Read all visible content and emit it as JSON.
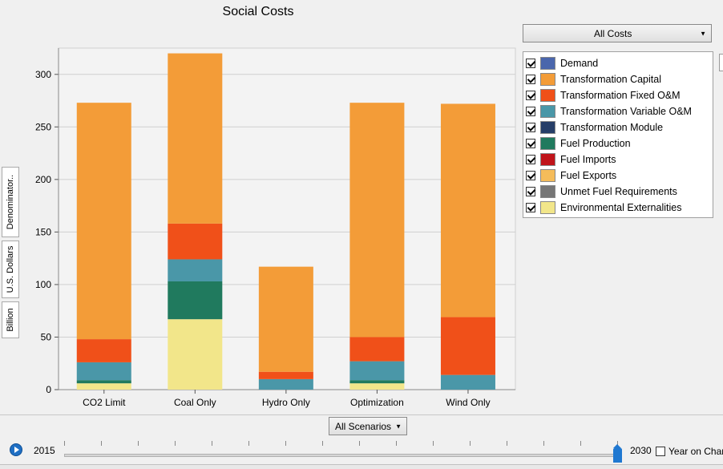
{
  "window": {
    "title": "Social Costs"
  },
  "side_tabs": [
    "Denominator..",
    "U.S. Dollars",
    "Billion"
  ],
  "cost_selector": {
    "value": "All Costs"
  },
  "scenario_selector": {
    "value": "All Scenarios"
  },
  "legend": [
    {
      "label": "Demand",
      "color": "#4a66ac",
      "checked": true
    },
    {
      "label": "Transformation Capital",
      "color": "#f39c38",
      "checked": true
    },
    {
      "label": "Transformation Fixed O&M",
      "color": "#f05019",
      "checked": true
    },
    {
      "label": "Transformation Variable O&M",
      "color": "#4a97a8",
      "checked": true
    },
    {
      "label": "Transformation Module",
      "color": "#263e68",
      "checked": true
    },
    {
      "label": "Fuel Production",
      "color": "#207a5e",
      "checked": true
    },
    {
      "label": "Fuel  Imports",
      "color": "#c0141a",
      "checked": true
    },
    {
      "label": "Fuel  Exports",
      "color": "#f5bc5a",
      "checked": true
    },
    {
      "label": "Unmet Fuel Requirements",
      "color": "#767676",
      "checked": true
    },
    {
      "label": "Environmental Externalities",
      "color": "#f2e68a",
      "checked": true
    }
  ],
  "timeline": {
    "start_year": "2015",
    "end_year": "2030",
    "current_year": 2030,
    "year_on_chart_label": "Year on Chart",
    "year_on_chart_checked": false
  },
  "chart_data": {
    "type": "bar",
    "stacked": true,
    "title": "Social Costs",
    "ylabel": "Billion U.S. Dollars",
    "ylim": [
      0,
      325
    ],
    "yticks": [
      0,
      50,
      100,
      150,
      200,
      250,
      300
    ],
    "categories": [
      "CO2 Limit",
      "Coal Only",
      "Hydro Only",
      "Optimization",
      "Wind Only"
    ],
    "series": [
      {
        "name": "Environmental Externalities",
        "color": "#f2e68a",
        "values": [
          6,
          67,
          0,
          6,
          0
        ]
      },
      {
        "name": "Fuel Production",
        "color": "#207a5e",
        "values": [
          3,
          36,
          0,
          3,
          0
        ]
      },
      {
        "name": "Transformation Variable O&M",
        "color": "#4a97a8",
        "values": [
          17,
          21,
          10,
          18,
          14
        ]
      },
      {
        "name": "Transformation Fixed O&M",
        "color": "#f05019",
        "values": [
          22,
          34,
          7,
          23,
          55
        ]
      },
      {
        "name": "Transformation Capital",
        "color": "#f39c38",
        "values": [
          225,
          162,
          100,
          223,
          203
        ]
      }
    ]
  }
}
